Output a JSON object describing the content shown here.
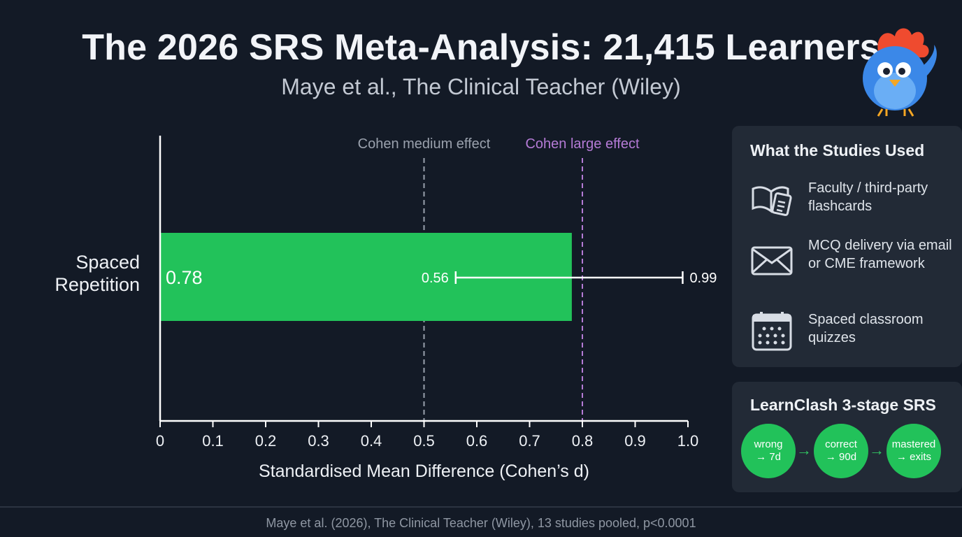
{
  "title": "The 2026 SRS Meta-Analysis: 21,415 Learners",
  "subtitle": "Maye et al., The Clinical Teacher (Wiley)",
  "chart_data": {
    "type": "bar",
    "orientation": "horizontal",
    "categories": [
      "Spaced\nRepetition"
    ],
    "values": [
      0.78
    ],
    "value_labels": [
      "0.78"
    ],
    "error_bars": [
      {
        "low": 0.56,
        "high": 0.99,
        "low_label": "0.56",
        "high_label": "0.99"
      }
    ],
    "xlabel": "Standardised Mean Difference (Cohen’s d)",
    "xlim": [
      0,
      1.0
    ],
    "xticks": [
      0,
      0.1,
      0.2,
      0.3,
      0.4,
      0.5,
      0.6,
      0.7,
      0.8,
      0.9,
      1.0
    ],
    "xtick_labels": [
      "0",
      "0.1",
      "0.2",
      "0.3",
      "0.4",
      "0.5",
      "0.6",
      "0.7",
      "0.8",
      "0.9",
      "1.0"
    ],
    "reference_lines": [
      {
        "x": 0.5,
        "label": "Cohen medium effect",
        "color": "#9aa1ad"
      },
      {
        "x": 0.8,
        "label": "Cohen large effect",
        "color": "#b57bd6"
      }
    ],
    "bar_color": "#22c25a",
    "grid": false
  },
  "studies_panel": {
    "title": "What the Studies Used",
    "items": [
      {
        "icon": "book-card-icon",
        "text": "Faculty / third-party flashcards"
      },
      {
        "icon": "envelope-icon",
        "text": "MCQ delivery via email or CME framework"
      },
      {
        "icon": "calendar-icon",
        "text": "Spaced classroom quizzes"
      }
    ]
  },
  "srs_panel": {
    "title": "LearnClash 3-stage SRS",
    "stages": [
      "wrong\n→ 7d",
      "correct\n→ 90d",
      "mastered\n→ exits"
    ],
    "arrow": "→"
  },
  "footer": "Maye et al. (2026), The Clinical Teacher (Wiley), 13 studies pooled, p<0.0001",
  "colors": {
    "background": "#131a26",
    "panel": "#222a36",
    "accent_green": "#22c25a",
    "large_effect": "#b57bd6"
  }
}
